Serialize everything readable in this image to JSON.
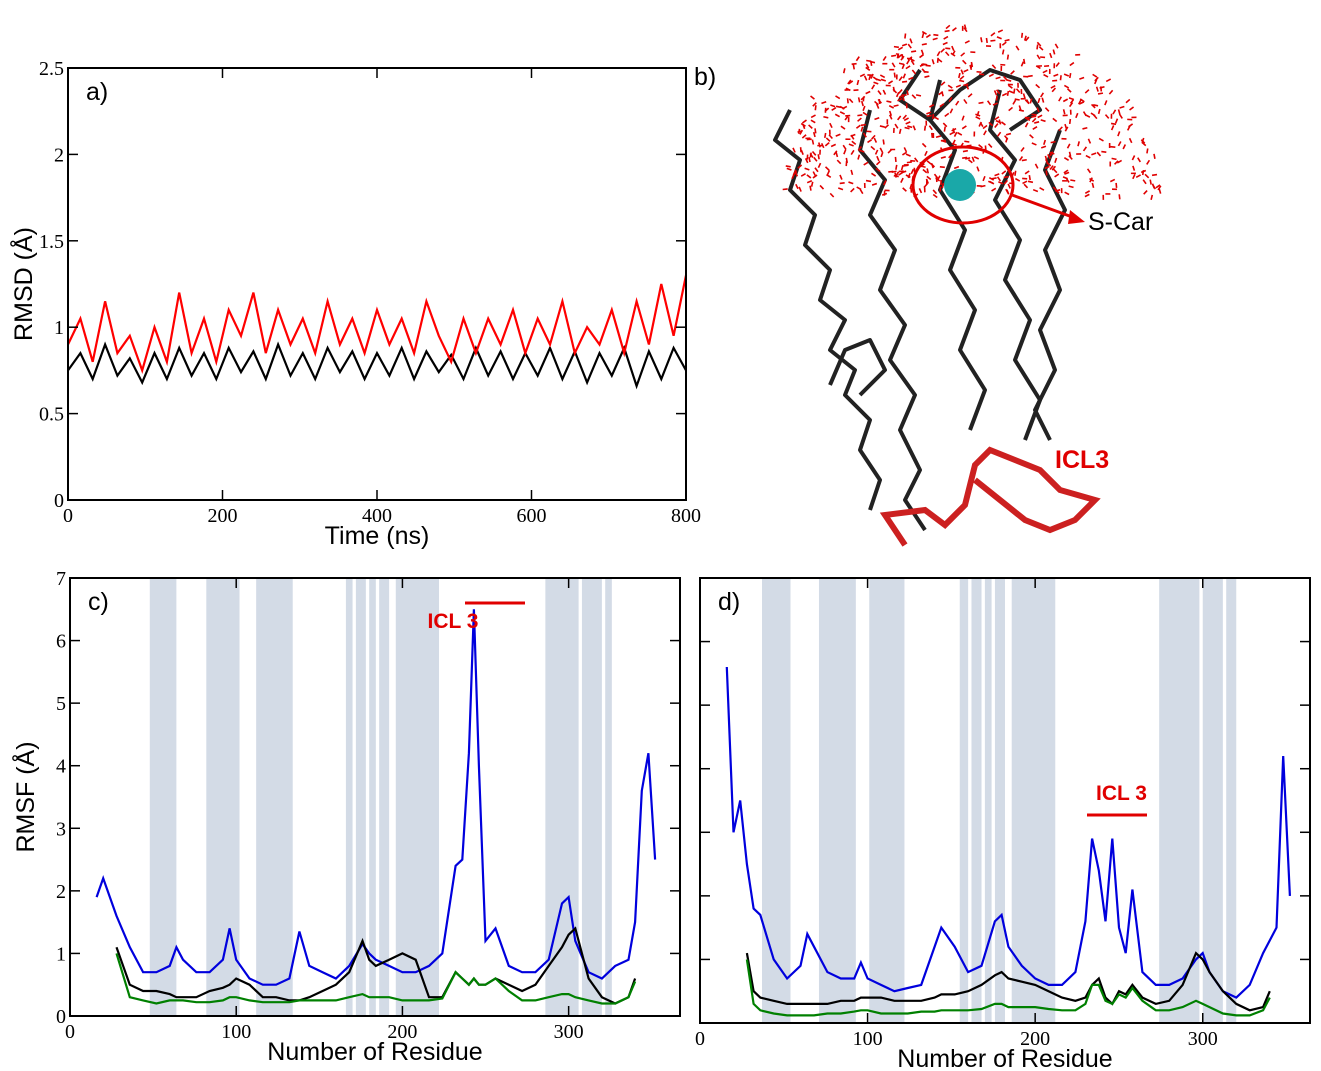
{
  "chart_data": [
    {
      "type": "line",
      "panel_label": "a)",
      "xlabel": "Time (ns)",
      "ylabel": "RMSD (Å)",
      "xlim": [
        0,
        800
      ],
      "ylim": [
        0,
        2.5
      ],
      "xticks": [
        0,
        200,
        400,
        600,
        800
      ],
      "yticks": [
        0,
        0.5,
        1,
        1.5,
        2,
        2.5
      ],
      "ytick_labels": true,
      "x": [
        0,
        16,
        32,
        48,
        64,
        80,
        96,
        112,
        128,
        144,
        160,
        176,
        192,
        208,
        224,
        240,
        256,
        272,
        288,
        304,
        320,
        336,
        352,
        368,
        384,
        400,
        416,
        432,
        448,
        464,
        480,
        496,
        512,
        528,
        544,
        560,
        576,
        592,
        608,
        624,
        640,
        656,
        672,
        688,
        704,
        720,
        736,
        752,
        768,
        784,
        800
      ],
      "series": [
        {
          "color": "#000000",
          "values": [
            0.75,
            0.85,
            0.7,
            0.9,
            0.72,
            0.82,
            0.68,
            0.85,
            0.7,
            0.88,
            0.72,
            0.85,
            0.7,
            0.88,
            0.74,
            0.86,
            0.7,
            0.9,
            0.72,
            0.85,
            0.7,
            0.88,
            0.74,
            0.86,
            0.7,
            0.85,
            0.72,
            0.88,
            0.7,
            0.86,
            0.74,
            0.84,
            0.7,
            0.88,
            0.72,
            0.86,
            0.7,
            0.85,
            0.72,
            0.88,
            0.7,
            0.86,
            0.68,
            0.85,
            0.72,
            0.88,
            0.66,
            0.86,
            0.7,
            0.88,
            0.75
          ]
        },
        {
          "color": "#ff0000",
          "values": [
            0.9,
            1.05,
            0.8,
            1.15,
            0.85,
            0.95,
            0.75,
            1.0,
            0.8,
            1.2,
            0.85,
            1.05,
            0.8,
            1.1,
            0.95,
            1.2,
            0.85,
            1.1,
            0.9,
            1.05,
            0.85,
            1.15,
            0.9,
            1.05,
            0.85,
            1.1,
            0.9,
            1.05,
            0.85,
            1.15,
            0.95,
            0.8,
            1.05,
            0.85,
            1.05,
            0.9,
            1.1,
            0.85,
            1.05,
            0.9,
            1.15,
            0.85,
            1.0,
            0.9,
            1.1,
            0.85,
            1.15,
            0.9,
            1.25,
            0.95,
            1.3
          ]
        }
      ]
    },
    {
      "type": "line",
      "panel_label": "c)",
      "xlabel": "Number of Residue",
      "ylabel": "RMSF (Å)",
      "annotation": "ICL 3",
      "xlim": [
        0,
        367
      ],
      "ylim": [
        0,
        7
      ],
      "xticks": [
        0,
        100,
        200,
        300
      ],
      "yticks": [
        0,
        1,
        2,
        3,
        4,
        5,
        6,
        7
      ],
      "ytick_labels": true,
      "span_color": "#d3dbe6",
      "spans": [
        [
          48,
          64
        ],
        [
          82,
          102
        ],
        [
          112,
          134
        ],
        [
          166,
          170
        ],
        [
          172,
          178
        ],
        [
          180,
          184
        ],
        [
          186,
          192
        ],
        [
          196,
          222
        ],
        [
          286,
          306
        ],
        [
          308,
          320
        ],
        [
          322,
          326
        ]
      ],
      "x": [
        16,
        20,
        28,
        36,
        44,
        52,
        60,
        64,
        68,
        76,
        84,
        92,
        96,
        100,
        108,
        116,
        124,
        132,
        138,
        144,
        152,
        160,
        168,
        176,
        180,
        184,
        192,
        200,
        208,
        216,
        224,
        232,
        236,
        240,
        243,
        246,
        250,
        256,
        264,
        272,
        280,
        288,
        296,
        300,
        304,
        312,
        320,
        328,
        336,
        340,
        344,
        348,
        352
      ],
      "series": [
        {
          "color": "#0000dd",
          "values": [
            1.9,
            2.2,
            1.6,
            1.1,
            0.7,
            0.7,
            0.8,
            1.1,
            0.9,
            0.7,
            0.7,
            0.9,
            1.4,
            0.9,
            0.6,
            0.5,
            0.5,
            0.6,
            1.35,
            0.8,
            0.7,
            0.6,
            0.8,
            1.15,
            1.0,
            0.9,
            0.8,
            0.7,
            0.7,
            0.8,
            1.0,
            2.4,
            2.5,
            4.2,
            6.5,
            4.0,
            1.2,
            1.4,
            0.8,
            0.7,
            0.7,
            0.9,
            1.8,
            1.9,
            1.2,
            0.7,
            0.6,
            0.8,
            0.9,
            1.5,
            3.6,
            4.2,
            2.5
          ]
        },
        {
          "color": "#000000",
          "values": [
            null,
            null,
            1.1,
            0.5,
            0.4,
            0.4,
            0.35,
            0.3,
            0.3,
            0.3,
            0.4,
            0.45,
            0.5,
            0.6,
            0.5,
            0.3,
            0.3,
            0.25,
            0.25,
            0.3,
            0.4,
            0.5,
            0.7,
            1.2,
            0.9,
            0.8,
            0.9,
            1.0,
            0.9,
            0.3,
            0.3,
            0.7,
            0.6,
            0.5,
            0.6,
            0.5,
            0.5,
            0.6,
            0.5,
            0.4,
            0.5,
            0.8,
            1.1,
            1.3,
            1.4,
            0.6,
            0.3,
            0.2,
            0.3,
            0.6,
            null,
            null,
            null
          ]
        },
        {
          "color": "#008000",
          "values": [
            null,
            null,
            1.0,
            0.3,
            0.25,
            0.2,
            0.25,
            0.25,
            0.25,
            0.22,
            0.22,
            0.25,
            0.3,
            0.3,
            0.25,
            0.22,
            0.22,
            0.22,
            0.25,
            0.25,
            0.25,
            0.25,
            0.3,
            0.35,
            0.3,
            0.3,
            0.3,
            0.25,
            0.25,
            0.25,
            0.28,
            0.7,
            0.6,
            0.5,
            0.6,
            0.5,
            0.5,
            0.6,
            0.4,
            0.25,
            0.25,
            0.3,
            0.35,
            0.35,
            0.3,
            0.25,
            0.2,
            0.2,
            0.3,
            0.55,
            null,
            null,
            null
          ]
        }
      ]
    },
    {
      "type": "line",
      "panel_label": "d)",
      "xlabel": "Number of Residue",
      "annotation": "ICL 3",
      "xlim": [
        0,
        364
      ],
      "ylim": [
        0,
        7
      ],
      "xticks": [
        0,
        100,
        200,
        300
      ],
      "yticks": [
        0,
        1,
        2,
        3,
        4,
        5,
        6,
        7
      ],
      "ytick_labels": false,
      "span_color": "#d3dbe6",
      "spans": [
        [
          37,
          54
        ],
        [
          71,
          93
        ],
        [
          101,
          122
        ],
        [
          155,
          160
        ],
        [
          162,
          168
        ],
        [
          170,
          174
        ],
        [
          176,
          182
        ],
        [
          186,
          212
        ],
        [
          274,
          298
        ],
        [
          300,
          312
        ],
        [
          314,
          320
        ]
      ],
      "x": [
        16,
        20,
        24,
        28,
        32,
        36,
        44,
        52,
        60,
        64,
        68,
        76,
        84,
        92,
        96,
        100,
        108,
        116,
        124,
        132,
        140,
        144,
        152,
        160,
        168,
        176,
        180,
        184,
        192,
        200,
        208,
        216,
        224,
        230,
        234,
        238,
        242,
        246,
        250,
        254,
        258,
        264,
        272,
        280,
        288,
        296,
        300,
        304,
        312,
        320,
        328,
        336,
        340,
        344,
        348,
        352
      ],
      "series": [
        {
          "color": "#0000dd",
          "values": [
            5.6,
            3.0,
            3.5,
            2.5,
            1.8,
            1.7,
            1.0,
            0.7,
            0.9,
            1.4,
            1.2,
            0.8,
            0.7,
            0.7,
            0.95,
            0.7,
            0.6,
            0.5,
            0.55,
            0.6,
            1.2,
            1.5,
            1.2,
            0.8,
            0.9,
            1.6,
            1.7,
            1.2,
            0.9,
            0.7,
            0.6,
            0.6,
            0.8,
            1.6,
            2.9,
            2.4,
            1.6,
            2.9,
            1.5,
            1.1,
            2.1,
            0.8,
            0.6,
            0.6,
            0.7,
            1.0,
            1.1,
            0.8,
            0.5,
            0.4,
            0.6,
            1.1,
            1.3,
            1.5,
            4.2,
            2.0
          ]
        },
        {
          "color": "#000000",
          "values": [
            null,
            null,
            null,
            1.1,
            0.5,
            0.4,
            0.35,
            0.3,
            0.3,
            0.3,
            0.3,
            0.3,
            0.35,
            0.35,
            0.4,
            0.4,
            0.4,
            0.35,
            0.35,
            0.35,
            0.4,
            0.45,
            0.45,
            0.5,
            0.6,
            0.75,
            0.8,
            0.7,
            0.65,
            0.6,
            0.5,
            0.4,
            0.35,
            0.4,
            0.6,
            0.7,
            0.4,
            0.3,
            0.5,
            0.45,
            0.6,
            0.4,
            0.3,
            0.35,
            0.6,
            1.1,
            1.0,
            0.8,
            0.5,
            0.3,
            0.2,
            0.25,
            0.5,
            null,
            null,
            null
          ]
        },
        {
          "color": "#008000",
          "values": [
            null,
            null,
            null,
            1.0,
            0.3,
            0.2,
            0.15,
            0.12,
            0.12,
            0.12,
            0.12,
            0.15,
            0.15,
            0.18,
            0.2,
            0.2,
            0.15,
            0.15,
            0.15,
            0.18,
            0.18,
            0.2,
            0.2,
            0.2,
            0.22,
            0.3,
            0.3,
            0.25,
            0.25,
            0.25,
            0.22,
            0.2,
            0.2,
            0.3,
            0.6,
            0.6,
            0.35,
            0.3,
            0.45,
            0.4,
            0.55,
            0.35,
            0.2,
            0.2,
            0.25,
            0.35,
            0.3,
            0.25,
            0.15,
            0.12,
            0.12,
            0.2,
            0.4,
            null,
            null,
            null
          ]
        }
      ]
    }
  ],
  "image": {
    "panel_label": "b)",
    "ligand": "S-Car",
    "loop": "ICL3"
  }
}
